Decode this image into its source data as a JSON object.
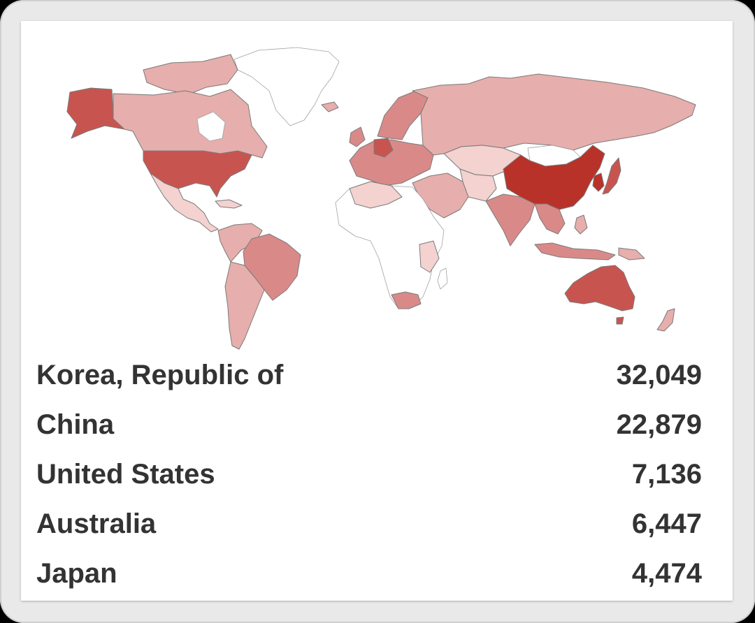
{
  "colors": {
    "scale_max": "#b8322a",
    "scale_high": "#c85450",
    "scale_mid": "#d98a88",
    "scale_low": "#e6aeac",
    "scale_min": "#f3d2d0",
    "no_data": "#ffffff"
  },
  "ranking": [
    {
      "country": "Korea, Republic of",
      "value": "32,049"
    },
    {
      "country": "China",
      "value": "22,879"
    },
    {
      "country": "United States",
      "value": "7,136"
    },
    {
      "country": "Australia",
      "value": "6,447"
    },
    {
      "country": "Japan",
      "value": "4,474"
    }
  ]
}
